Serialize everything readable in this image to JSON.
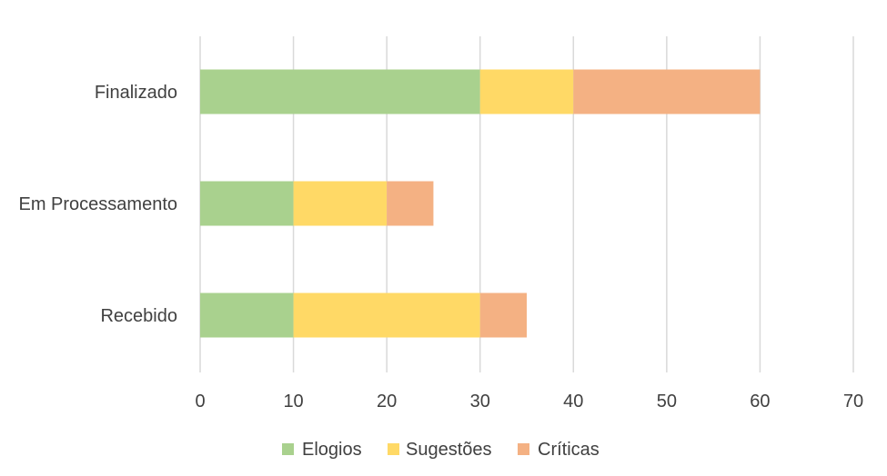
{
  "chart_data": {
    "type": "bar",
    "orientation": "horizontal",
    "stacked": true,
    "categories": [
      "Finalizado",
      "Em Processamento",
      "Recebido"
    ],
    "series": [
      {
        "name": "Elogios",
        "values": [
          30,
          10,
          10
        ],
        "color": "#a9d18e"
      },
      {
        "name": "Sugestões",
        "values": [
          10,
          10,
          20
        ],
        "color": "#ffd966"
      },
      {
        "name": "Críticas",
        "values": [
          20,
          5,
          5
        ],
        "color": "#f4b183"
      }
    ],
    "xlim": [
      0,
      70
    ],
    "xticks": [
      0,
      10,
      20,
      30,
      40,
      50,
      60,
      70
    ],
    "grid": true,
    "legend_position": "bottom",
    "title": "",
    "xlabel": "",
    "ylabel": ""
  }
}
